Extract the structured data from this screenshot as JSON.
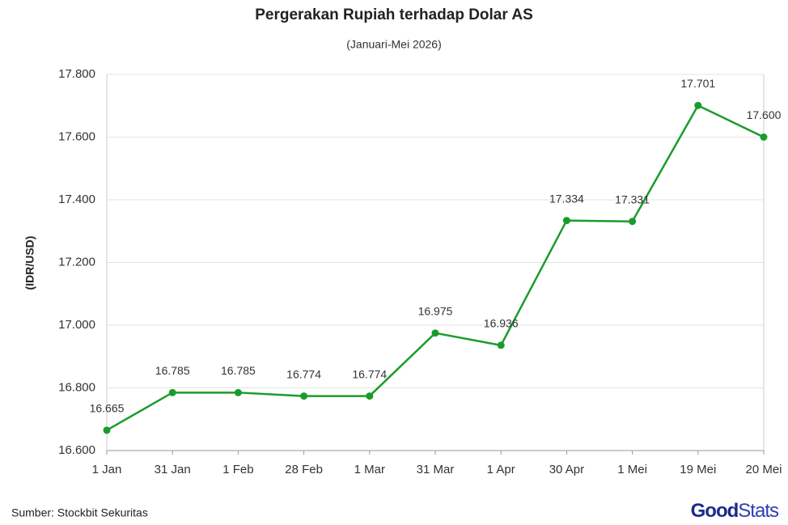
{
  "chart_data": {
    "type": "line",
    "title": "Pergerakan Rupiah terhadap Dolar AS",
    "subtitle": "(Januari-Mei 2026)",
    "y_label": "(IDR/USD)",
    "categories": [
      "1 Jan",
      "31 Jan",
      "1 Feb",
      "28 Feb",
      "1 Mar",
      "31 Mar",
      "1 Apr",
      "30 Apr",
      "1 Mei",
      "19 Mei",
      "20 Mei"
    ],
    "series": [
      {
        "color": "#1a9c2a",
        "values": [
          16665,
          16785,
          16785,
          16774,
          16774,
          16975,
          16936,
          17334,
          17331,
          17701,
          17600
        ],
        "value_labels": [
          "16.665",
          "16.785",
          "16.785",
          "16.774",
          "16.774",
          "16.975",
          "16.936",
          "17.334",
          "17.331",
          "17.701",
          "17.600"
        ]
      }
    ],
    "ylim": [
      16600,
      17800
    ],
    "yticks": [
      {
        "value": 16600,
        "label": "16.600"
      },
      {
        "value": 16800,
        "label": "16.800"
      },
      {
        "value": 17000,
        "label": "17.000"
      },
      {
        "value": 17200,
        "label": "17.200"
      },
      {
        "value": 17400,
        "label": "17.400"
      },
      {
        "value": 17600,
        "label": "17.600"
      },
      {
        "value": 17800,
        "label": "17.800"
      }
    ],
    "grid": true,
    "source": "Sumber: Stockbit Sekuritas",
    "logo": [
      "Good",
      "Stats"
    ]
  }
}
